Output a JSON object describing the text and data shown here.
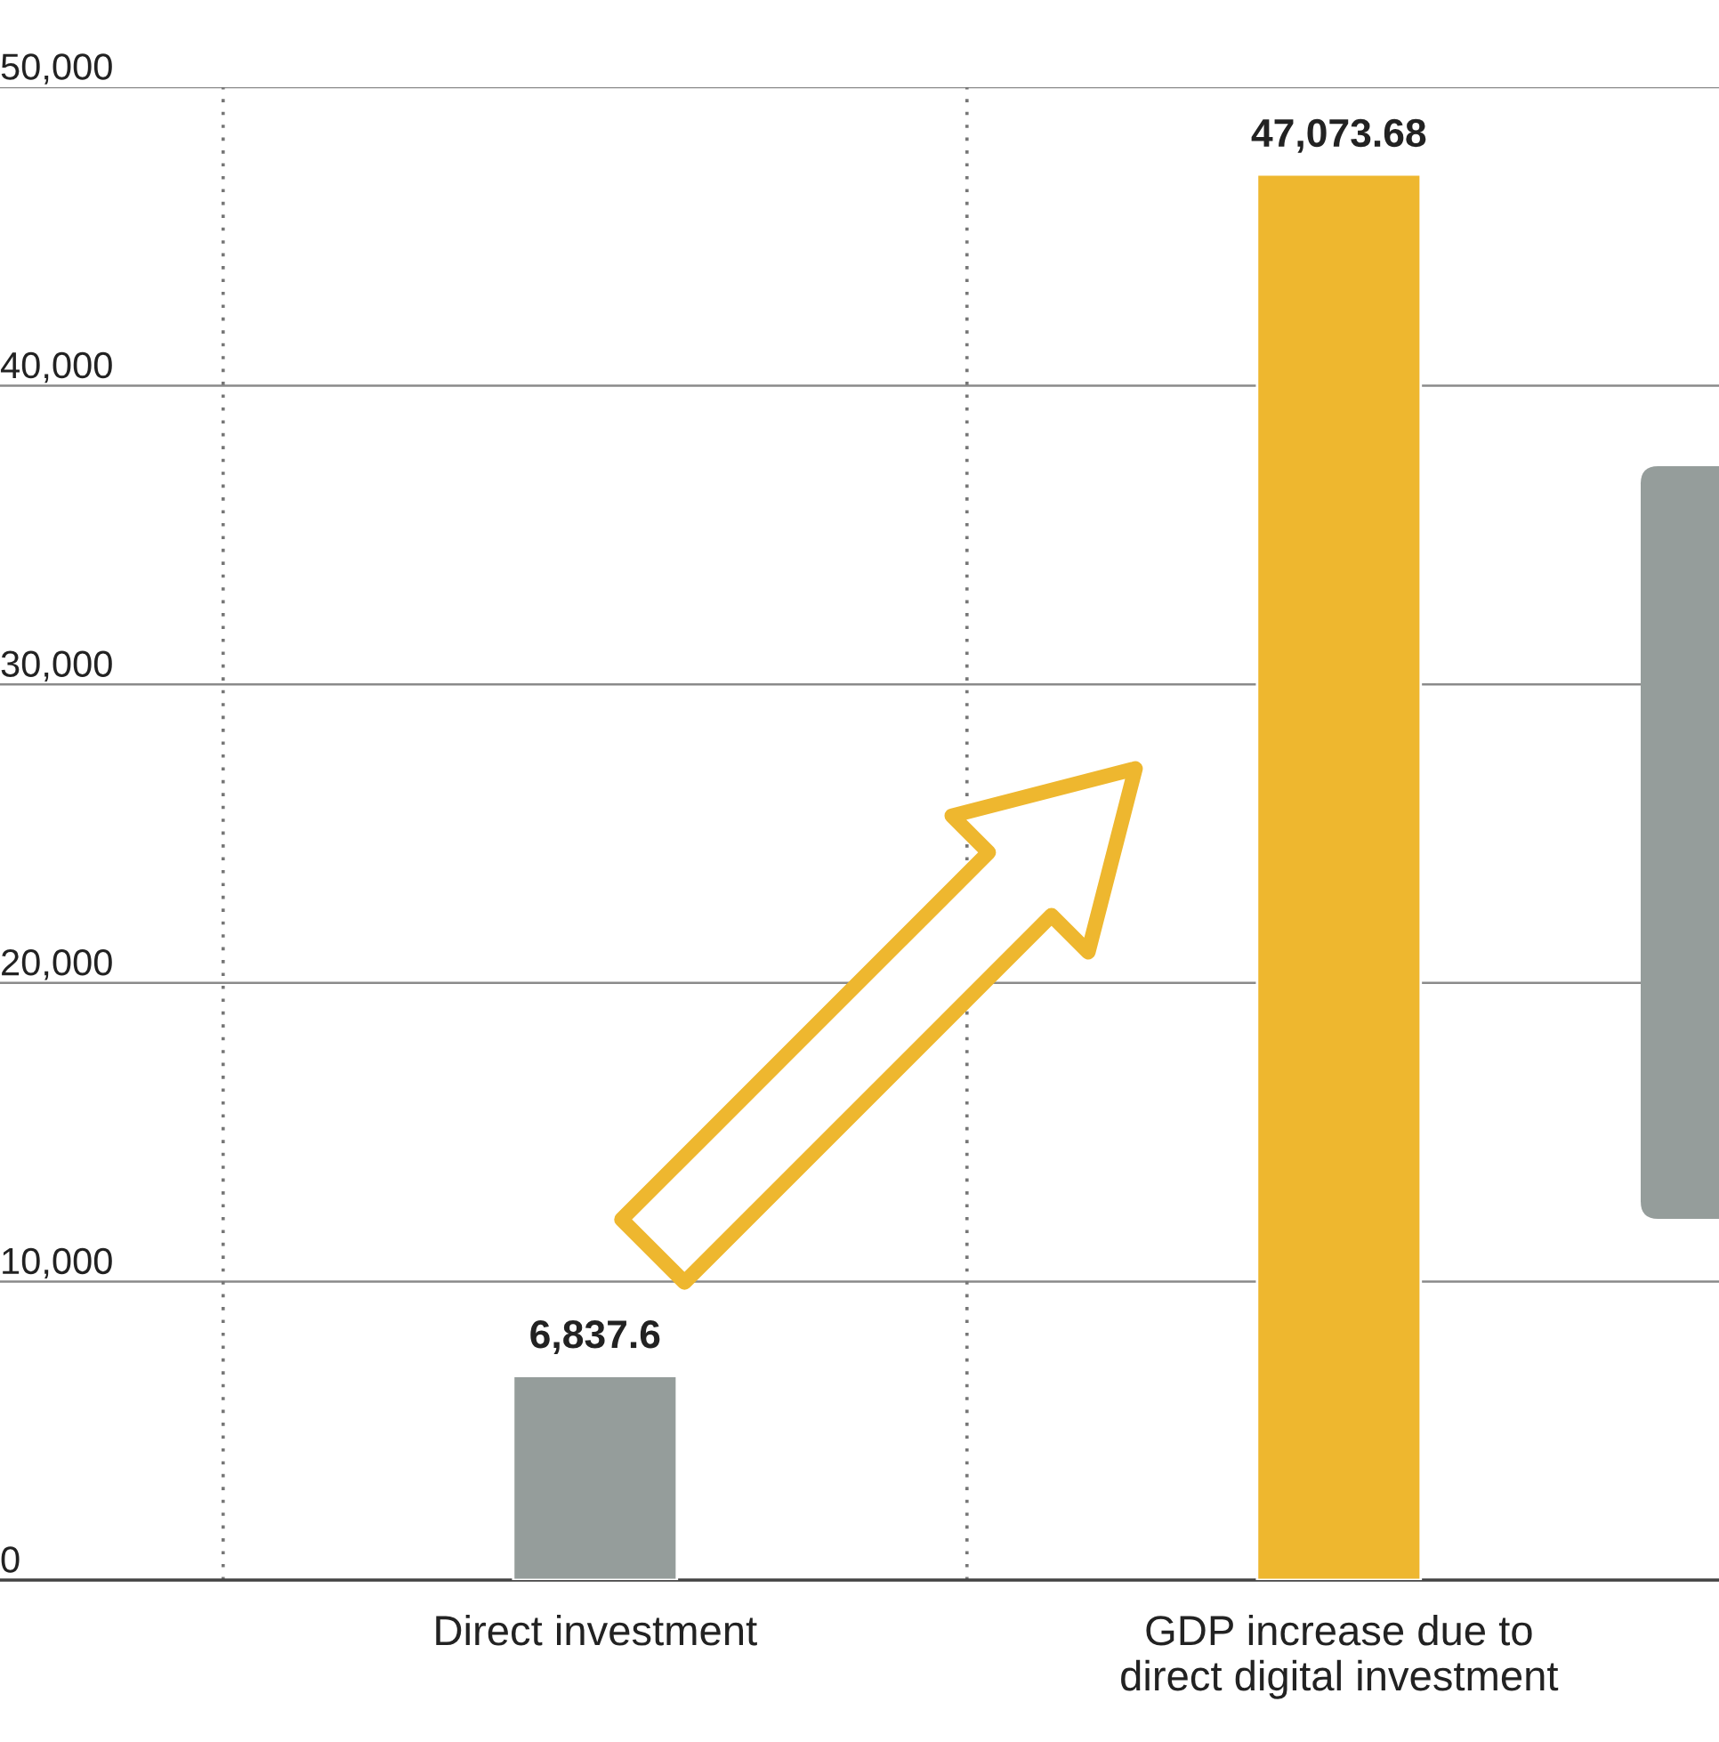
{
  "chart_data": {
    "type": "bar",
    "categories": [
      "Direct investment",
      "GDP increase due to\ndirect digital investment"
    ],
    "values": [
      6837.6,
      47073.68
    ],
    "colors": [
      "#959d9b",
      "#eeb72f"
    ],
    "value_labels": [
      "6,837.6",
      "47,073.68"
    ],
    "ylim": [
      0,
      50000
    ],
    "yticks": [
      {
        "value": 0,
        "label": "0"
      },
      {
        "value": 10000,
        "label": "10,000"
      },
      {
        "value": 20000,
        "label": "20,000"
      },
      {
        "value": 30000,
        "label": "30,000"
      },
      {
        "value": 40000,
        "label": "40,000"
      },
      {
        "value": 50000,
        "label": "50,000"
      }
    ],
    "grid": "y",
    "legend": false
  }
}
